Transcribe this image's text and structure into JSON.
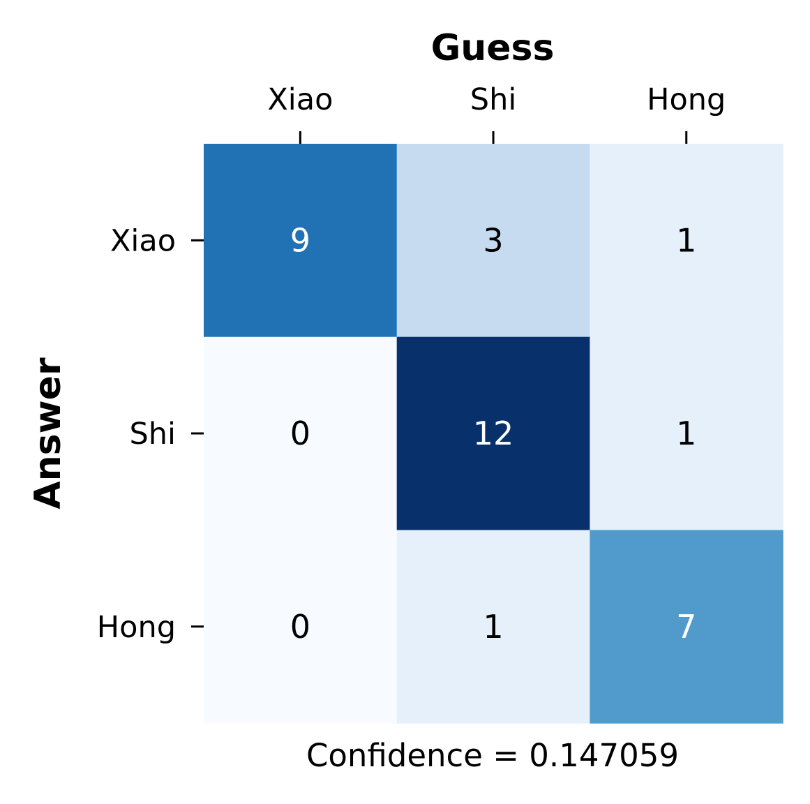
{
  "chart_data": {
    "type": "heatmap",
    "title": "Guess",
    "xlabel": "Guess",
    "ylabel": "Answer",
    "x_categories": [
      "Xiao",
      "Shi",
      "Hong"
    ],
    "y_categories": [
      "Xiao",
      "Shi",
      "Hong"
    ],
    "values": [
      [
        9,
        3,
        1
      ],
      [
        0,
        12,
        1
      ],
      [
        0,
        1,
        7
      ]
    ],
    "caption": "Confidence = 0.147059",
    "colormap": "Blues",
    "vmin": 0,
    "vmax": 12,
    "colorbar": false,
    "x_axis_position": "top",
    "grid": false
  }
}
